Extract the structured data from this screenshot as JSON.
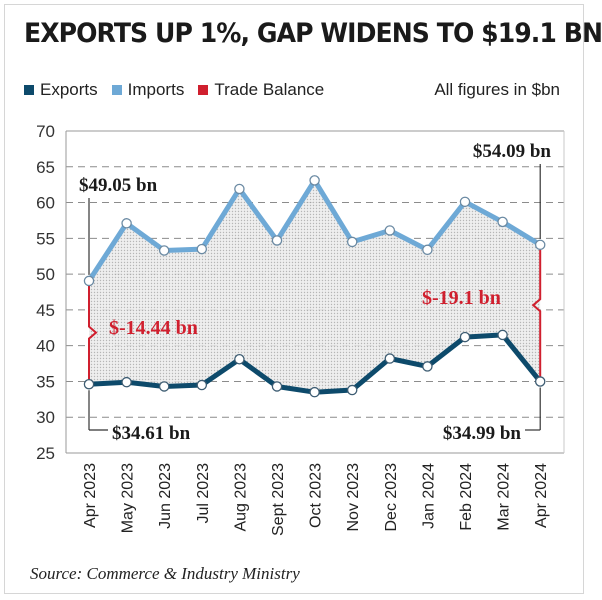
{
  "title": "EXPORTS UP 1%, GAP WIDENS TO $19.1 BN",
  "note": "All figures in $bn",
  "source": "Source: Commerce & Industry Ministry",
  "colors": {
    "exports": "#0d4a6b",
    "imports": "#6ea9d6",
    "balance": "#d01f2e"
  },
  "chart_data": {
    "type": "line",
    "categories": [
      "Apr 2023",
      "May 2023",
      "Jun 2023",
      "Jul 2023",
      "Aug 2023",
      "Sept 2023",
      "Oct 2023",
      "Nov 2023",
      "Dec 2023",
      "Jan 2024",
      "Feb 2024",
      "Mar 2024",
      "Apr 2024"
    ],
    "series": [
      {
        "name": "Exports",
        "values": [
          34.61,
          34.9,
          34.3,
          34.5,
          38.1,
          34.3,
          33.5,
          33.8,
          38.2,
          37.1,
          41.2,
          41.5,
          34.99
        ]
      },
      {
        "name": "Imports",
        "values": [
          49.05,
          57.1,
          53.3,
          53.5,
          61.9,
          54.7,
          63.1,
          54.5,
          56.1,
          53.4,
          60.1,
          57.3,
          54.09
        ]
      }
    ],
    "legend": [
      "Exports",
      "Imports",
      "Trade Balance"
    ],
    "ylim": [
      25,
      70
    ],
    "yticks": [
      "25",
      "30",
      "35",
      "40",
      "45",
      "50",
      "55",
      "60",
      "65",
      "70"
    ],
    "grid": true,
    "legend_position": "top-left",
    "annotations": {
      "first_import": "$49.05 bn",
      "first_export": "$34.61 bn",
      "last_import": "$54.09 bn",
      "last_export": "$34.99 bn",
      "first_balance": "$-14.44 bn",
      "last_balance": "$-19.1 bn"
    }
  }
}
